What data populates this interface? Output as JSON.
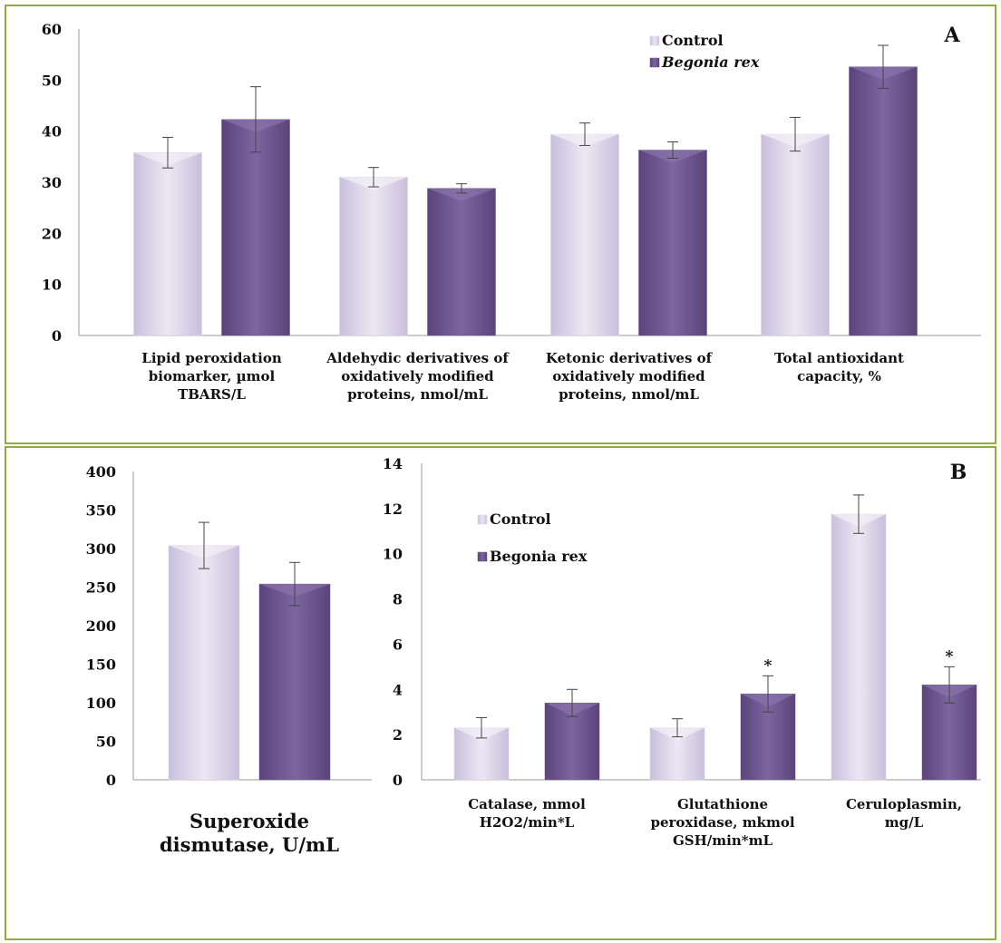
{
  "colors": {
    "control": "#d8d0e6",
    "begonia": "#6e5590",
    "axis": "#999999",
    "border": "#8fae3f"
  },
  "chart_data": [
    {
      "panel": "A",
      "type": "bar",
      "label": "A",
      "ylim": [
        0,
        60
      ],
      "yticks": [
        0,
        10,
        20,
        30,
        40,
        50,
        60
      ],
      "categories": [
        [
          "Lipid peroxidation",
          "biomarker, µmol",
          "TBARS/L"
        ],
        [
          "Aldehydic derivatives of",
          "oxidatively modified",
          "proteins, nmol/mL"
        ],
        [
          "Ketonic derivatives of",
          "oxidatively modified",
          "proteins, nmol/mL"
        ],
        [
          "Total antioxidant",
          "capacity, %"
        ]
      ],
      "legend": [
        "Control",
        "Begonia rex"
      ],
      "legend_italic": [
        false,
        true
      ],
      "series": [
        {
          "name": "Control",
          "values": [
            35.8,
            31.0,
            39.4,
            39.4
          ],
          "errors": [
            3.0,
            1.9,
            2.2,
            3.3
          ]
        },
        {
          "name": "Begonia rex",
          "values": [
            42.3,
            28.8,
            36.3,
            52.6
          ],
          "errors": [
            6.4,
            0.9,
            1.6,
            4.2
          ]
        }
      ]
    },
    {
      "panel": "B1",
      "type": "bar",
      "ylim": [
        0,
        400
      ],
      "yticks": [
        0,
        50,
        100,
        150,
        200,
        250,
        300,
        350,
        400
      ],
      "categories": [
        [
          "Superoxide",
          "dismutase, U/mL"
        ]
      ],
      "series": [
        {
          "name": "Control",
          "values": [
            304
          ],
          "errors": [
            30
          ]
        },
        {
          "name": "Begonia rex",
          "values": [
            254
          ],
          "errors": [
            28
          ]
        }
      ]
    },
    {
      "panel": "B2",
      "type": "bar",
      "label": "B",
      "ylim": [
        0,
        14
      ],
      "yticks": [
        0,
        2,
        4,
        6,
        8,
        10,
        12,
        14
      ],
      "categories": [
        [
          "Catalase, mmol",
          "H2O2/min*L"
        ],
        [
          "Glutathione",
          "peroxidase, mkmol",
          "GSH/min*mL"
        ],
        [
          "Ceruloplasmin,",
          "mg/L"
        ]
      ],
      "legend": [
        "Control",
        "Begonia rex"
      ],
      "legend_italic": [
        false,
        false
      ],
      "significance": [
        "",
        "*",
        "*"
      ],
      "series": [
        {
          "name": "Control",
          "values": [
            2.3,
            2.3,
            11.75
          ],
          "errors": [
            0.45,
            0.4,
            0.85
          ]
        },
        {
          "name": "Begonia rex",
          "values": [
            3.4,
            3.8,
            4.2
          ],
          "errors": [
            0.6,
            0.8,
            0.8
          ]
        }
      ]
    }
  ]
}
